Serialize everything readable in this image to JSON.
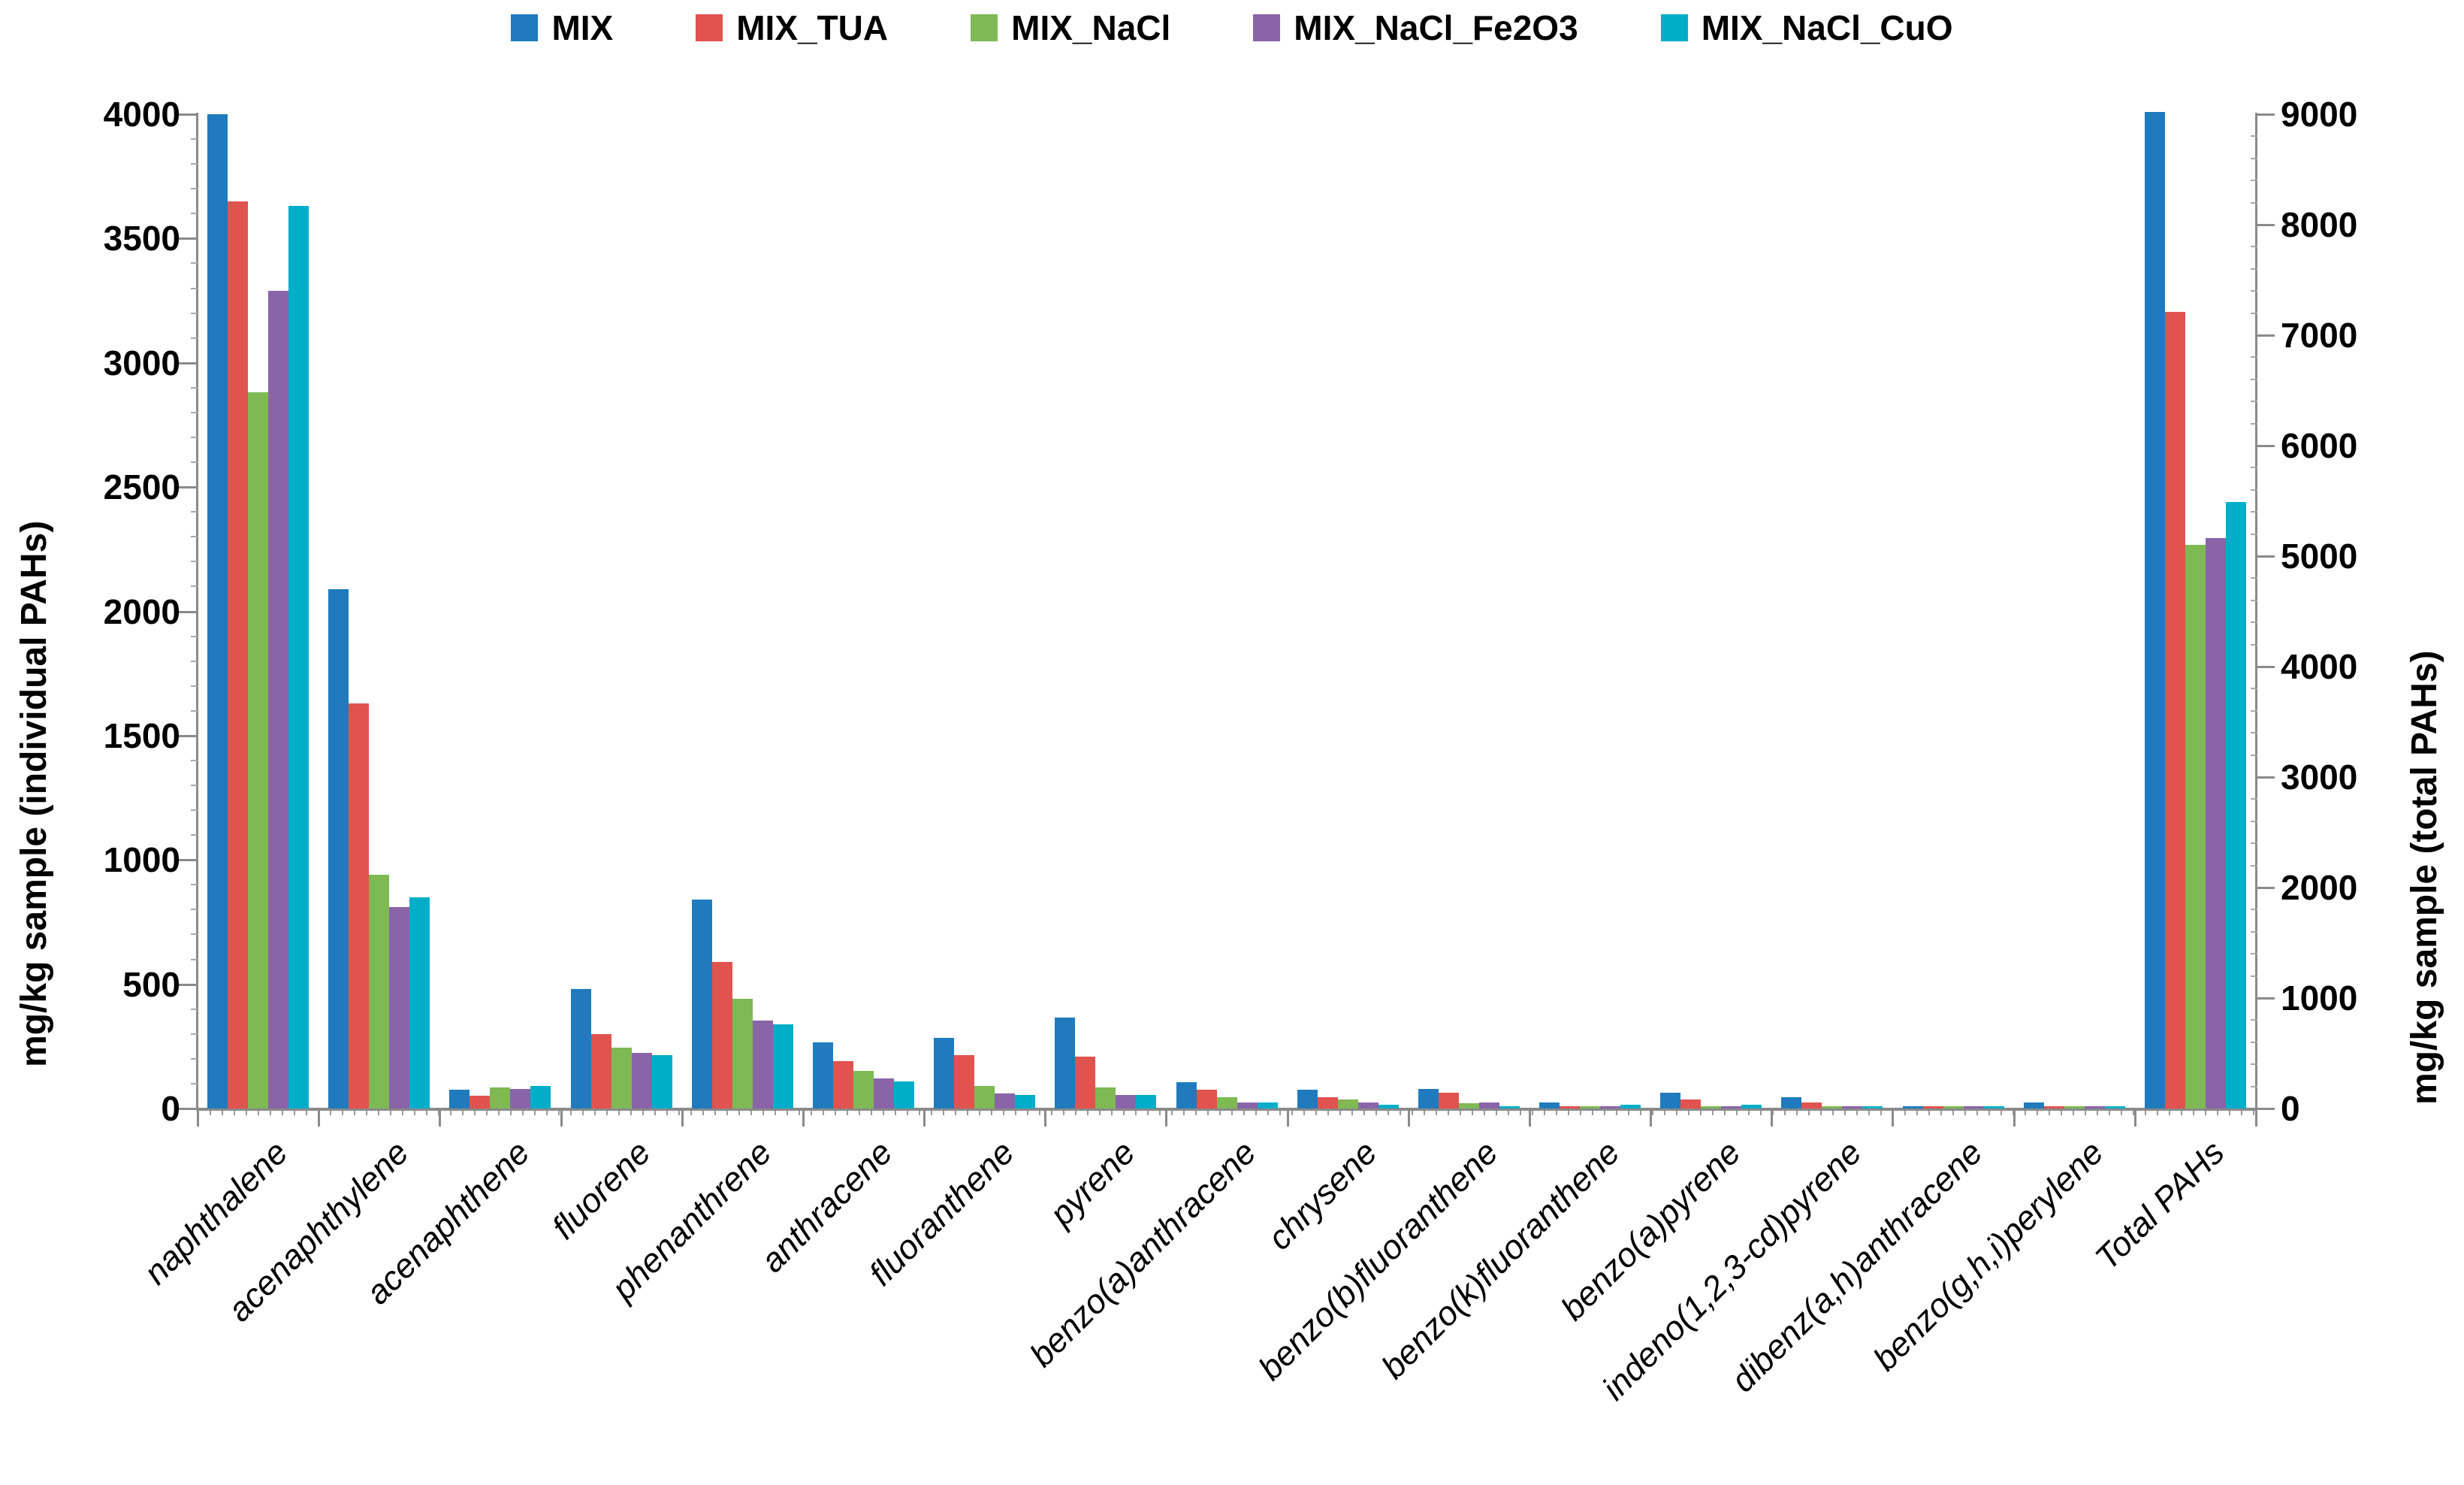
{
  "chart_data": {
    "type": "bar",
    "title": "",
    "legend_position": "top",
    "grid": false,
    "axis_color": "#8a8a8a",
    "text_color": "#000000",
    "categories": [
      "naphthalene",
      "acenaphthylene",
      "acenaphthene",
      "fluorene",
      "phenanthrene",
      "anthracene",
      "fluoranthene",
      "pyrene",
      "benzo(a)anthracene",
      "chrysene",
      "benzo(b)fluoranthene",
      "benzo(k)fluoranthene",
      "benzo(a)pyrene",
      "indeno(1,2,3-cd)pyrene",
      "dibenz(a,h)anthracene",
      "benzo(g,h,i)perylene",
      "Total PAHs"
    ],
    "series": [
      {
        "name": "MIX",
        "color": "#1f7bbd",
        "values": [
          4000,
          2090,
          75,
          480,
          840,
          265,
          285,
          365,
          105,
          75,
          80,
          25,
          65,
          45,
          10,
          25,
          9020
        ]
      },
      {
        "name": "MIX_TUA",
        "color": "#e0534f",
        "values": [
          3650,
          1630,
          50,
          300,
          590,
          190,
          215,
          210,
          75,
          45,
          65,
          10,
          35,
          25,
          10,
          10,
          7210
        ]
      },
      {
        "name": "MIX_NaCl",
        "color": "#7eb954",
        "values": [
          2880,
          940,
          85,
          245,
          440,
          150,
          90,
          85,
          45,
          35,
          20,
          10,
          10,
          10,
          10,
          10,
          5100
        ]
      },
      {
        "name": "MIX_NaCl_Fe2O3",
        "color": "#8a64a8",
        "values": [
          3290,
          810,
          80,
          225,
          355,
          120,
          60,
          55,
          25,
          25,
          25,
          10,
          10,
          10,
          10,
          10,
          5160
        ]
      },
      {
        "name": "MIX_NaCl_CuO",
        "color": "#00aec9",
        "values": [
          3630,
          850,
          90,
          215,
          340,
          110,
          55,
          55,
          25,
          15,
          10,
          15,
          15,
          10,
          10,
          10,
          5490
        ]
      }
    ],
    "left_axis": {
      "label": "mg/kg sample (individual PAHs)",
      "min": 0,
      "max": 4000,
      "tick_step": 500,
      "minor_step": 100,
      "ticks": [
        0,
        500,
        1000,
        1500,
        2000,
        2500,
        3000,
        3500,
        4000
      ]
    },
    "right_axis": {
      "label": "mg/kg sample (total PAHs)",
      "min": 0,
      "max": 9000,
      "tick_step": 1000,
      "minor_step": 200,
      "ticks": [
        0,
        1000,
        2000,
        3000,
        4000,
        5000,
        6000,
        7000,
        8000,
        9000
      ]
    },
    "right_axis_categories": [
      "Total PAHs"
    ]
  }
}
